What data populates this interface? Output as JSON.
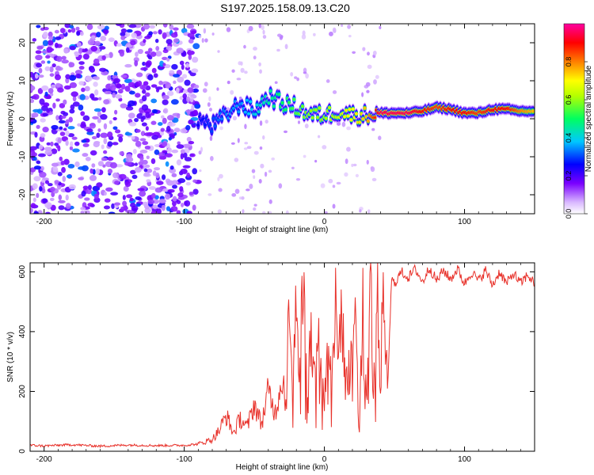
{
  "figure": {
    "title": "S197.2025.158.09.13.C20"
  },
  "chart_data": [
    {
      "type": "heatmap",
      "xlabel": "Height of straight line (km)",
      "ylabel": "Frequency (Hz)",
      "xlim": [
        -210,
        150
      ],
      "ylim": [
        -25,
        25
      ],
      "xticks": [
        -200,
        -100,
        0,
        100
      ],
      "yticks": [
        -20,
        -10,
        0,
        10,
        20
      ],
      "grid": false,
      "colorbar": {
        "label": "Normalized spectral amplitude",
        "range": [
          0.0,
          1.0
        ],
        "ticks": [
          0.0,
          0.2,
          0.4,
          0.6,
          0.8
        ],
        "tick_labels": [
          "0.0",
          "0.2",
          "0.4",
          "0.6",
          "0.8"
        ],
        "colormap": "rainbow (white → purple → blue → cyan → green → yellow → red → magenta)"
      },
      "ridge": {
        "description": "dominant frequency ridge vs height",
        "x": [
          -90,
          -80,
          -70,
          -60,
          -50,
          -40,
          -30,
          -20,
          -10,
          0,
          10,
          20,
          30,
          40,
          50,
          60,
          70,
          80,
          90,
          100,
          110,
          120,
          130,
          140,
          150
        ],
        "y": [
          0,
          -2,
          1,
          4,
          2,
          6,
          4,
          3,
          1,
          1,
          2,
          1,
          1,
          1.5,
          1.5,
          1.5,
          2,
          3,
          2.5,
          1.5,
          1.5,
          2.5,
          2.5,
          2,
          2
        ],
        "peak_amplitude": [
          0.25,
          0.3,
          0.35,
          0.35,
          0.4,
          0.45,
          0.5,
          0.55,
          0.6,
          0.6,
          0.65,
          0.7,
          0.75,
          0.95,
          0.95,
          0.95,
          0.9,
          0.85,
          0.9,
          0.9,
          0.85,
          0.9,
          0.9,
          0.8,
          0.75
        ]
      },
      "noise_region": {
        "x_range": [
          -210,
          -90
        ],
        "amplitude": [
          0.05,
          0.35
        ]
      }
    },
    {
      "type": "line",
      "xlabel": "Height of straight line (km)",
      "ylabel": "SNR (10 * v/v)",
      "xlim": [
        -210,
        150
      ],
      "ylim": [
        0,
        630
      ],
      "xticks": [
        -200,
        -100,
        0,
        100
      ],
      "yticks": [
        0,
        200,
        400,
        600
      ],
      "grid": false,
      "color": "#e8312a",
      "x": [
        -210,
        -200,
        -180,
        -160,
        -140,
        -120,
        -100,
        -90,
        -80,
        -75,
        -70,
        -65,
        -60,
        -55,
        -50,
        -45,
        -40,
        -35,
        -30,
        -27,
        -25,
        -23,
        -20,
        -18,
        -15,
        -12,
        -10,
        -7,
        -5,
        -3,
        0,
        3,
        5,
        8,
        10,
        12,
        15,
        18,
        20,
        22,
        25,
        28,
        30,
        33,
        35,
        38,
        40,
        42,
        45,
        48,
        50,
        55,
        60,
        65,
        70,
        75,
        80,
        85,
        90,
        95,
        100,
        105,
        110,
        115,
        120,
        125,
        130,
        135,
        140,
        145,
        150
      ],
      "y": [
        20,
        18,
        22,
        17,
        21,
        19,
        20,
        24,
        40,
        70,
        120,
        60,
        110,
        80,
        160,
        90,
        200,
        130,
        260,
        150,
        600,
        250,
        540,
        300,
        560,
        200,
        380,
        250,
        430,
        300,
        170,
        380,
        250,
        480,
        300,
        500,
        220,
        520,
        200,
        540,
        150,
        560,
        170,
        580,
        170,
        580,
        180,
        590,
        200,
        575,
        560,
        600,
        580,
        610,
        565,
        615,
        570,
        605,
        575,
        610,
        560,
        600,
        570,
        605,
        555,
        600,
        560,
        595,
        560,
        590,
        560
      ]
    }
  ]
}
